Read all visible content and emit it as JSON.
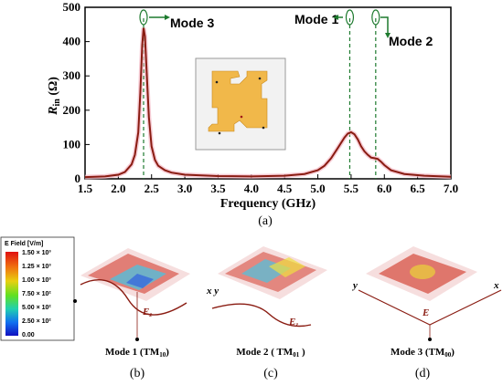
{
  "chart_data": {
    "type": "line",
    "xlabel": "Frequency (GHz)",
    "ylabel_main": "R",
    "ylabel_sub": "in",
    "ylabel_unit": " (Ω)",
    "xlim": [
      1.5,
      7.0
    ],
    "ylim": [
      0,
      500
    ],
    "xticks": [
      "1.5",
      "2.0",
      "2.5",
      "3.0",
      "3.5",
      "4.0",
      "4.5",
      "5.0",
      "5.5",
      "6.0",
      "6.5",
      "7.0"
    ],
    "yticks": [
      "0",
      "100",
      "200",
      "300",
      "400",
      "500"
    ],
    "series": [
      {
        "x": [
          1.5,
          1.8,
          2.0,
          2.1,
          2.2,
          2.25,
          2.3,
          2.33,
          2.36,
          2.38,
          2.4,
          2.43,
          2.46,
          2.5,
          2.55,
          2.6,
          2.7,
          2.8,
          3.0,
          3.5,
          4.0,
          4.5,
          4.8,
          5.0,
          5.1,
          5.2,
          5.3,
          5.4,
          5.45,
          5.5,
          5.55,
          5.6,
          5.65,
          5.7,
          5.75,
          5.8,
          5.85,
          5.9,
          5.95,
          6.0,
          6.1,
          6.3,
          6.6,
          7.0
        ],
        "y": [
          5,
          7,
          12,
          20,
          42,
          70,
          135,
          250,
          390,
          440,
          415,
          300,
          180,
          95,
          55,
          38,
          25,
          18,
          12,
          8,
          7,
          9,
          14,
          25,
          38,
          60,
          90,
          120,
          132,
          136,
          130,
          115,
          95,
          80,
          70,
          62,
          60,
          58,
          50,
          40,
          25,
          14,
          9,
          6
        ]
      }
    ],
    "markers": [
      {
        "label": "Mode 3",
        "x": 2.38
      },
      {
        "label": "Mode 1",
        "x": 5.48
      },
      {
        "label": "Mode 2",
        "x": 5.87
      }
    ]
  },
  "panel_a_label": "(a)",
  "legend": {
    "title": "E Field [V/m]",
    "values": [
      "1.50 × 10³",
      "1.25 × 10³",
      "1.00 × 10³",
      "7.50 × 10²",
      "5.00 × 10²",
      "2.50 × 10²",
      "0.00"
    ]
  },
  "field_plots": [
    {
      "title_main": "Mode 1 (TM",
      "title_sub": "10",
      "title_end": ")",
      "panel": "(b)",
      "ez": "E",
      "ez_sub": "z"
    },
    {
      "title_main": "Mode 2 ( TM",
      "title_sub": "01",
      "title_end": " )",
      "panel": "(c)",
      "ez": "E",
      "ez_sub": "z",
      "axes": "x y"
    },
    {
      "title_main": "Mode 3 (TM",
      "title_sub": "00",
      "title_end": ")",
      "panel": "(d)",
      "ez": "E",
      "ax_y": "y",
      "ax_x": "x"
    }
  ]
}
